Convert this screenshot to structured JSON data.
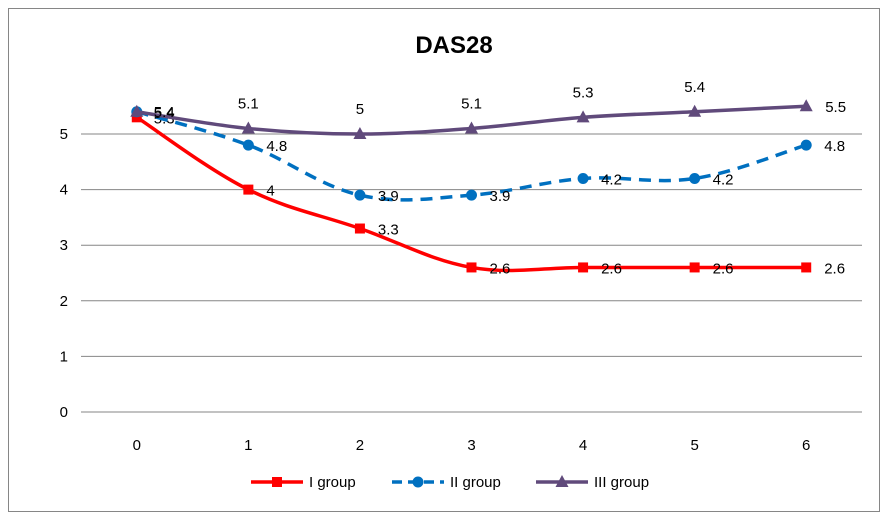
{
  "chart_data": {
    "type": "line",
    "title": "DAS28",
    "xlabel": "",
    "ylabel": "",
    "x": [
      0,
      1,
      2,
      3,
      4,
      5,
      6
    ],
    "ylim": [
      0,
      5.5
    ],
    "yticks": [
      0,
      1,
      2,
      3,
      4,
      5
    ],
    "grid": true,
    "legend": "bottom",
    "series": [
      {
        "name": "I group",
        "color": "#ff0000",
        "marker": "square",
        "dash": "solid",
        "values": [
          5.3,
          4,
          3.3,
          2.6,
          2.6,
          2.6,
          2.6
        ],
        "labels": [
          "5.3",
          "4",
          "3.3",
          "2.6",
          "2.6",
          "2.6",
          "2.6"
        ]
      },
      {
        "name": "II group",
        "color": "#0070c0",
        "marker": "circle",
        "dash": "dashed",
        "values": [
          5.4,
          4.8,
          3.9,
          3.9,
          4.2,
          4.2,
          4.8
        ],
        "labels": [
          "5.4",
          "4.8",
          "3.9",
          "3.9",
          "4.2",
          "4.2",
          "4.8"
        ]
      },
      {
        "name": "III group",
        "color": "#604a7b",
        "marker": "triangle",
        "dash": "solid",
        "values": [
          5.4,
          5.1,
          5,
          5.1,
          5.3,
          5.4,
          5.5
        ],
        "labels": [
          "5.4",
          "5.1",
          "5",
          "5.1",
          "5.3",
          "5.4",
          "5.5"
        ]
      }
    ]
  }
}
